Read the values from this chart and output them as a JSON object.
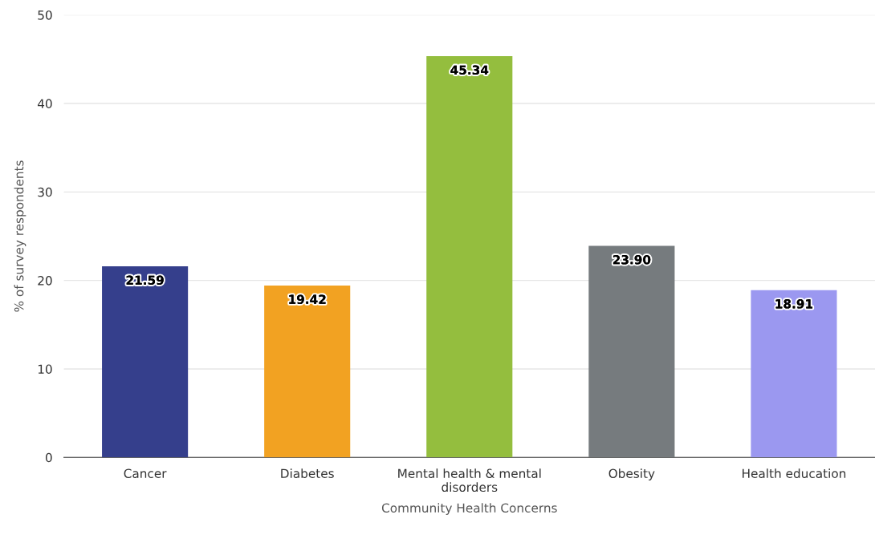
{
  "chart_data": {
    "type": "bar",
    "xlabel": "Community Health Concerns",
    "ylabel": "% of survey respondents",
    "categories": [
      "Cancer",
      "Diabetes",
      "Mental health & mental\ndisorders",
      "Obesity",
      "Health education"
    ],
    "values": [
      21.59,
      19.42,
      45.34,
      23.9,
      18.91
    ],
    "value_labels": [
      "21.59",
      "19.42",
      "45.34",
      "23.90",
      "18.91"
    ],
    "colors": [
      "#353f8c",
      "#f2a222",
      "#94be3e",
      "#767b7e",
      "#9b98f0"
    ],
    "ylim": [
      0,
      50
    ],
    "yticks": [
      0,
      10,
      20,
      30,
      40,
      50
    ],
    "grid": "y",
    "legend": false
  }
}
